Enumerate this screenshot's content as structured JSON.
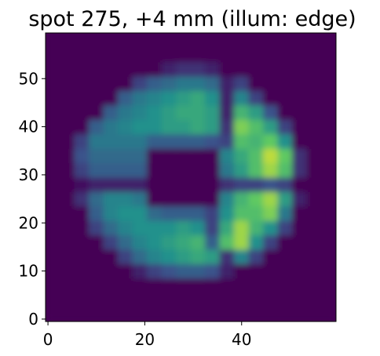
{
  "chart_data": {
    "type": "heatmap",
    "title": "spot 275, +4 mm (illum: edge)",
    "xlim": [
      -0.5,
      59.5
    ],
    "ylim": [
      -0.5,
      59.5
    ],
    "xticks": [
      0,
      20,
      40
    ],
    "yticks": [
      0,
      10,
      20,
      30,
      40,
      50
    ],
    "origin": "lower",
    "colormap": [
      "#440154",
      "#3b528b",
      "#21918c",
      "#5ec962",
      "#fde725"
    ],
    "zlim": [
      0,
      1
    ],
    "z": [
      [
        0,
        0,
        0,
        0,
        0,
        0,
        0,
        0,
        0,
        0,
        0,
        0,
        0,
        0,
        0,
        0,
        0,
        0,
        0,
        0
      ],
      [
        0,
        0,
        0,
        0,
        0,
        0,
        0,
        0,
        0,
        0,
        0,
        0,
        0,
        0,
        0,
        0,
        0,
        0,
        0,
        0
      ],
      [
        0,
        0,
        0,
        0,
        0,
        0,
        0,
        0,
        0,
        0,
        0,
        0,
        0,
        0,
        0,
        0,
        0,
        0,
        0,
        0
      ],
      [
        0,
        0,
        0,
        0,
        0,
        0,
        0.1,
        0.2,
        0.25,
        0.3,
        0.3,
        0.25,
        0.1,
        0,
        0,
        0,
        0,
        0,
        0,
        0
      ],
      [
        0,
        0,
        0,
        0,
        0,
        0.2,
        0.35,
        0.45,
        0.5,
        0.55,
        0.6,
        0.55,
        0.15,
        0.45,
        0.2,
        0,
        0,
        0,
        0,
        0
      ],
      [
        0,
        0,
        0,
        0,
        0.2,
        0.35,
        0.45,
        0.5,
        0.55,
        0.6,
        0.65,
        0.3,
        0.7,
        0.85,
        0.5,
        0.2,
        0,
        0,
        0,
        0
      ],
      [
        0,
        0,
        0,
        0.2,
        0.35,
        0.45,
        0.5,
        0.5,
        0.5,
        0.55,
        0.5,
        0.2,
        0.6,
        0.85,
        0.65,
        0.5,
        0.2,
        0,
        0,
        0
      ],
      [
        0,
        0,
        0,
        0.3,
        0.45,
        0.5,
        0.5,
        0.35,
        0.3,
        0.3,
        0.3,
        0.2,
        0.5,
        0.7,
        0.7,
        0.8,
        0.4,
        0,
        0,
        0
      ],
      [
        0,
        0,
        0.15,
        0.35,
        0.45,
        0.45,
        0.4,
        0,
        0,
        0,
        0,
        0,
        0.45,
        0.65,
        0.75,
        0.85,
        0.55,
        0.1,
        0,
        0
      ],
      [
        0,
        0,
        0.05,
        0.1,
        0.1,
        0.1,
        0.1,
        0,
        0,
        0,
        0,
        0,
        0.15,
        0.2,
        0.2,
        0.25,
        0.2,
        0,
        0,
        0
      ],
      [
        0,
        0,
        0.2,
        0.3,
        0.3,
        0.3,
        0.3,
        0,
        0,
        0,
        0,
        0,
        0.4,
        0.55,
        0.7,
        0.85,
        0.7,
        0.15,
        0,
        0
      ],
      [
        0,
        0,
        0.25,
        0.35,
        0.35,
        0.35,
        0.35,
        0,
        0,
        0,
        0,
        0,
        0.45,
        0.6,
        0.7,
        0.9,
        0.75,
        0.15,
        0,
        0
      ],
      [
        0,
        0,
        0.2,
        0.4,
        0.4,
        0.4,
        0.4,
        0.3,
        0.3,
        0.3,
        0.3,
        0.25,
        0.2,
        0.7,
        0.65,
        0.75,
        0.5,
        0,
        0,
        0
      ],
      [
        0,
        0,
        0,
        0.3,
        0.4,
        0.45,
        0.5,
        0.5,
        0.55,
        0.55,
        0.6,
        0.55,
        0.15,
        0.8,
        0.7,
        0.55,
        0.2,
        0,
        0,
        0
      ],
      [
        0,
        0,
        0,
        0,
        0.3,
        0.4,
        0.45,
        0.5,
        0.55,
        0.6,
        0.6,
        0.55,
        0.1,
        0.65,
        0.55,
        0.25,
        0,
        0,
        0,
        0
      ],
      [
        0,
        0,
        0,
        0,
        0,
        0.3,
        0.4,
        0.45,
        0.5,
        0.55,
        0.6,
        0.5,
        0.1,
        0.45,
        0.2,
        0,
        0,
        0,
        0,
        0
      ],
      [
        0,
        0,
        0,
        0,
        0,
        0,
        0.2,
        0.3,
        0.35,
        0.4,
        0.4,
        0.35,
        0.1,
        0.2,
        0,
        0,
        0,
        0,
        0,
        0
      ],
      [
        0,
        0,
        0,
        0,
        0,
        0,
        0,
        0,
        0.1,
        0.15,
        0.15,
        0.1,
        0,
        0,
        0,
        0,
        0,
        0,
        0,
        0
      ],
      [
        0,
        0,
        0,
        0,
        0,
        0,
        0,
        0,
        0,
        0,
        0,
        0,
        0,
        0,
        0,
        0,
        0,
        0,
        0,
        0
      ],
      [
        0,
        0,
        0,
        0,
        0,
        0,
        0,
        0,
        0,
        0,
        0,
        0,
        0,
        0,
        0,
        0,
        0,
        0,
        0,
        0
      ]
    ]
  }
}
